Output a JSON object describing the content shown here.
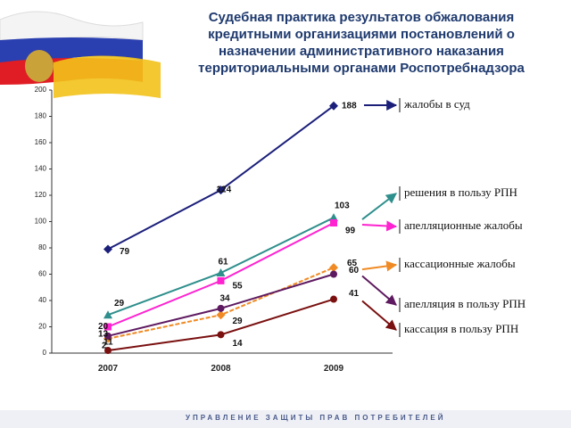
{
  "chart_data": {
    "type": "line",
    "title": [
      "Судебная практика результатов обжалования",
      "кредитными организациями постановлений о",
      "назначении административного наказания",
      "территориальными органами Роспотребнадзора"
    ],
    "footer": "УПРАВЛЕНИЕ ЗАЩИТЫ ПРАВ ПОТРЕБИТЕЛЕЙ",
    "categories": [
      "2007",
      "2008",
      "2009"
    ],
    "ylim": [
      0,
      200
    ],
    "yticks": [
      0,
      20,
      40,
      60,
      80,
      100,
      120,
      140,
      160,
      180,
      200
    ],
    "series": [
      {
        "name": "жалобы в суд",
        "color": "#1b1f7a",
        "marker": "diamond",
        "values": [
          79,
          124,
          188
        ]
      },
      {
        "name": "решения в пользу РПН",
        "color": "#2e8f8c",
        "marker": "triangle",
        "values": [
          29,
          61,
          103
        ]
      },
      {
        "name": "апелляционные жалобы",
        "color": "#ff22d0",
        "marker": "square",
        "values": [
          20,
          55,
          99
        ]
      },
      {
        "name": "кассационные жалобы",
        "color": "#f08a24",
        "marker": "diamond",
        "values": [
          11,
          29,
          65
        ]
      },
      {
        "name": "апелляция в пользу РПН",
        "color": "#5e1a60",
        "marker": "circle",
        "values": [
          13,
          34,
          60
        ]
      },
      {
        "name": "кассация в пользу РПН",
        "color": "#7a1010",
        "marker": "circle",
        "values": [
          2,
          14,
          41
        ]
      }
    ]
  }
}
